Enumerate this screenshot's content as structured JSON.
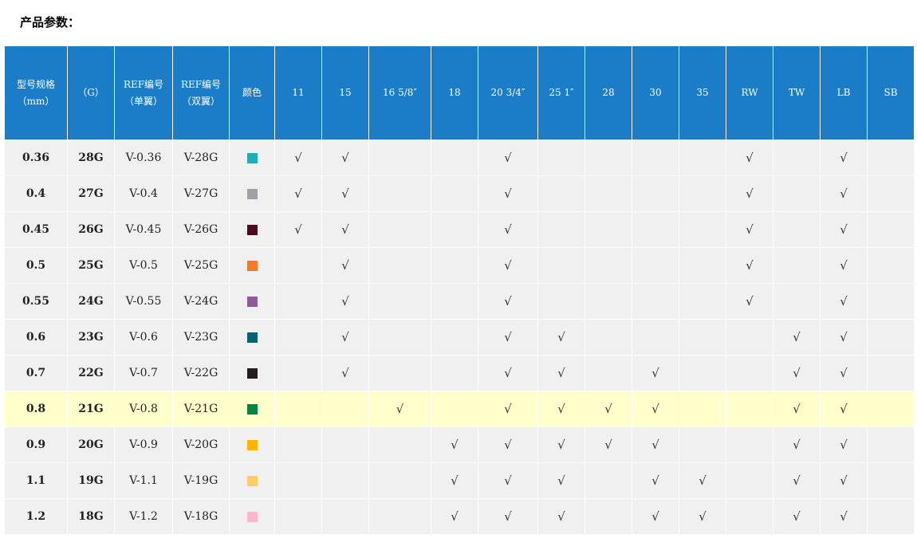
{
  "title": "产品参数：",
  "headers": [
    "型号规格\n（mm）",
    "（G）",
    "REF编号\n（单翼）",
    "REF编号\n（双翼）",
    "颜色",
    "11",
    "15",
    "16 5/8″",
    "18",
    "20 3/4″",
    "25 1″",
    "28",
    "30",
    "35",
    "RW",
    "TW",
    "LB",
    "SB"
  ],
  "check_symbol": "√",
  "highlight_color": "#ffffcc",
  "header_color": "#1b7cc8",
  "rows": [
    {
      "size": "0.36",
      "gauge": "28G",
      "ref_single": "V-0.36",
      "ref_double": "V-28G",
      "color": "#20adb6",
      "checks": [
        "11",
        "15",
        "20 3/4″",
        "RW",
        "LB"
      ]
    },
    {
      "size": "0.4",
      "gauge": "27G",
      "ref_single": "V-0.4",
      "ref_double": "V-27G",
      "color": "#a0a0a4",
      "checks": [
        "11",
        "15",
        "20 3/4″",
        "RW",
        "LB"
      ]
    },
    {
      "size": "0.45",
      "gauge": "26G",
      "ref_single": "V-0.45",
      "ref_double": "V-26G",
      "color": "#4a0a20",
      "checks": [
        "11",
        "15",
        "20 3/4″",
        "RW",
        "LB"
      ]
    },
    {
      "size": "0.5",
      "gauge": "25G",
      "ref_single": "V-0.5",
      "ref_double": "V-25G",
      "color": "#f47a2a",
      "checks": [
        "15",
        "20 3/4″",
        "RW",
        "LB"
      ]
    },
    {
      "size": "0.55",
      "gauge": "24G",
      "ref_single": "V-0.55",
      "ref_double": "V-24G",
      "color": "#8e5a9a",
      "checks": [
        "15",
        "20 3/4″",
        "RW",
        "LB"
      ]
    },
    {
      "size": "0.6",
      "gauge": "23G",
      "ref_single": "V-0.6",
      "ref_double": "V-23G",
      "color": "#006474",
      "checks": [
        "15",
        "20 3/4″",
        "25 1″",
        "TW",
        "LB"
      ]
    },
    {
      "size": "0.7",
      "gauge": "22G",
      "ref_single": "V-0.7",
      "ref_double": "V-22G",
      "color": "#231f20",
      "checks": [
        "15",
        "20 3/4″",
        "25 1″",
        "30",
        "TW",
        "LB"
      ]
    },
    {
      "size": "0.8",
      "gauge": "21G",
      "ref_single": "V-0.8",
      "ref_double": "V-21G",
      "color": "#00843f",
      "highlight": true,
      "checks": [
        "16 5/8″",
        "20 3/4″",
        "25 1″",
        "28",
        "30",
        "TW",
        "LB"
      ]
    },
    {
      "size": "0.9",
      "gauge": "20G",
      "ref_single": "V-0.9",
      "ref_double": "V-20G",
      "color": "#ffb400",
      "checks": [
        "18",
        "20 3/4″",
        "25 1″",
        "28",
        "30",
        "TW",
        "LB"
      ]
    },
    {
      "size": "1.1",
      "gauge": "19G",
      "ref_single": "V-1.1",
      "ref_double": "V-19G",
      "color": "#ffcc66",
      "checks": [
        "18",
        "20 3/4″",
        "25 1″",
        "30",
        "35",
        "TW",
        "LB"
      ]
    },
    {
      "size": "1.2",
      "gauge": "18G",
      "ref_single": "V-1.2",
      "ref_double": "V-18G",
      "color": "#ffb6c8",
      "checks": [
        "18",
        "20 3/4″",
        "25 1″",
        "30",
        "35",
        "TW",
        "LB"
      ]
    }
  ]
}
